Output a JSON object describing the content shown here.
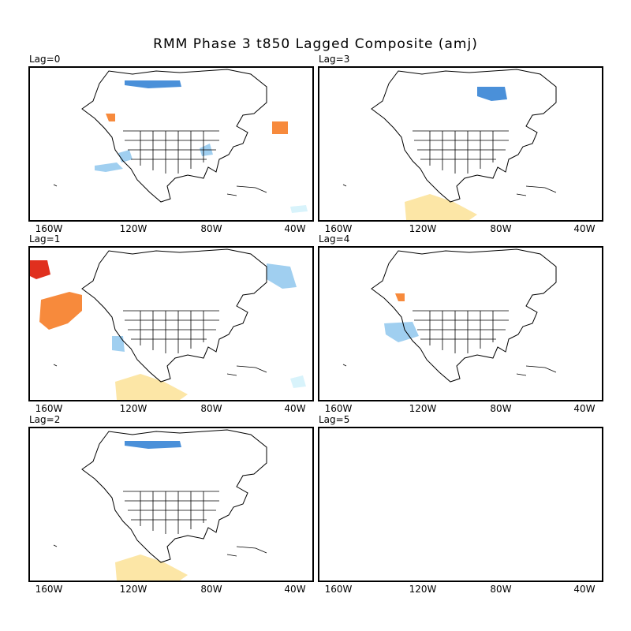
{
  "title": "RMM Phase 3 t850 Lagged Composite (amj)",
  "x_tick_labels": [
    "160W",
    "120W",
    "80W",
    "40W"
  ],
  "colors": {
    "warm_light": "#fce6a6",
    "warm_medium": "#f78a3c",
    "warm_strong": "#e0301e",
    "cool_faint": "#d8f3fb",
    "cool_light": "#a0cff0",
    "cool_medium": "#4a90d9"
  },
  "panels": [
    {
      "label": "Lag=0",
      "anomalies": [
        {
          "region": "Canadian Arctic Archipelago",
          "sign": "cool",
          "level": "medium"
        },
        {
          "region": "British Columbia coast",
          "sign": "warm",
          "level": "medium"
        },
        {
          "region": "North Atlantic east of Labrador",
          "sign": "warm",
          "level": "medium"
        },
        {
          "region": "Eastern Pacific off California",
          "sign": "cool",
          "level": "light"
        },
        {
          "region": "Northwestern Mexico",
          "sign": "cool",
          "level": "light"
        },
        {
          "region": "Ohio Valley",
          "sign": "cool",
          "level": "light"
        },
        {
          "region": "Caribbean Sea",
          "sign": "cool",
          "level": "faint"
        }
      ]
    },
    {
      "label": "Lag=3",
      "anomalies": [
        {
          "region": "Baffin Island",
          "sign": "cool",
          "level": "medium"
        },
        {
          "region": "Eastern tropical Pacific",
          "sign": "warm",
          "level": "light"
        }
      ]
    },
    {
      "label": "Lag=1",
      "anomalies": [
        {
          "region": "Alaska",
          "sign": "warm",
          "level": "strong"
        },
        {
          "region": "Gulf of Alaska",
          "sign": "warm",
          "level": "medium"
        },
        {
          "region": "Greenland",
          "sign": "cool",
          "level": "light"
        },
        {
          "region": "Eastern Pacific off Baja California",
          "sign": "cool",
          "level": "light"
        },
        {
          "region": "Eastern tropical Pacific",
          "sign": "warm",
          "level": "light"
        },
        {
          "region": "Central Atlantic",
          "sign": "cool",
          "level": "faint"
        }
      ]
    },
    {
      "label": "Lag=4",
      "anomalies": [
        {
          "region": "Western United States",
          "sign": "cool",
          "level": "light"
        },
        {
          "region": "British Columbia coast",
          "sign": "warm",
          "level": "medium"
        }
      ]
    },
    {
      "label": "Lag=2",
      "anomalies": [
        {
          "region": "Canadian Arctic Archipelago",
          "sign": "cool",
          "level": "medium"
        },
        {
          "region": "Eastern tropical Pacific",
          "sign": "warm",
          "level": "light"
        }
      ]
    },
    {
      "label": "Lag=5",
      "anomalies": []
    }
  ]
}
